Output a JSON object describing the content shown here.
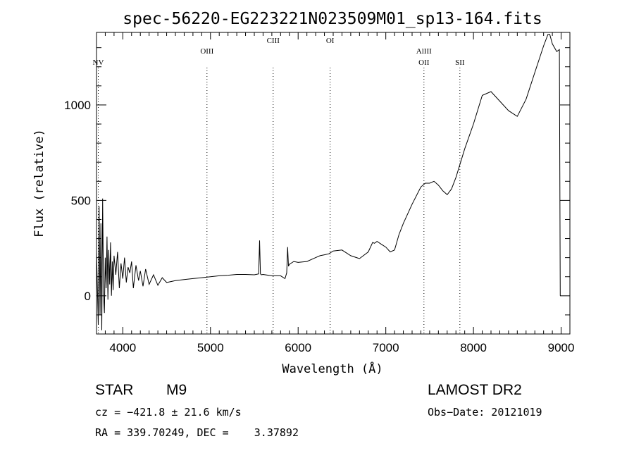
{
  "chart_data": {
    "type": "line",
    "title": "spec-56220-EG223221N023509M01_sp13-164.fits",
    "xlabel": "Wavelength (Å)",
    "ylabel": "Flux (relative)",
    "xlim": [
      3700,
      9100
    ],
    "ylim": [
      -200,
      1380
    ],
    "x_ticks": [
      4000,
      5000,
      6000,
      7000,
      8000,
      9000
    ],
    "y_ticks": [
      0,
      500,
      1000
    ],
    "x_tick_labels": [
      "4000",
      "5000",
      "6000",
      "7000",
      "8000",
      "9000"
    ],
    "y_tick_labels": [
      "0",
      "500",
      "1000"
    ],
    "grid": false,
    "lines": [
      {
        "name": "NV",
        "x": 3720,
        "label_y": 1210
      },
      {
        "name": "OIII",
        "x": 4960,
        "label_y": 1270
      },
      {
        "name": "CIII",
        "x": 5715,
        "label_y": 1325
      },
      {
        "name": "OI",
        "x": 6365,
        "label_y": 1325
      },
      {
        "name": "AlIII",
        "x": 7435,
        "label_y": 1270
      },
      {
        "name": "OII",
        "x": 7435,
        "label_y": 1210
      },
      {
        "name": "SII",
        "x": 7845,
        "label_y": 1210
      }
    ],
    "series": [
      {
        "x": [
          3700,
          3720,
          3730,
          3740,
          3750,
          3760,
          3770,
          3780,
          3790,
          3800,
          3810,
          3820,
          3830,
          3840,
          3850,
          3860,
          3870,
          3880,
          3890,
          3900,
          3920,
          3940,
          3960,
          3980,
          4000,
          4020,
          4040,
          4060,
          4080,
          4100,
          4120,
          4150,
          4180,
          4200,
          4230,
          4260,
          4300,
          4350,
          4400,
          4450,
          4500,
          4600,
          4700,
          4800,
          4900,
          5000,
          5100,
          5200,
          5300,
          5400,
          5500,
          5550,
          5560,
          5570,
          5580,
          5600,
          5700,
          5800,
          5850,
          5870,
          5880,
          5890,
          5900,
          5950,
          6000,
          6100,
          6200,
          6250,
          6300,
          6350,
          6400,
          6500,
          6600,
          6700,
          6800,
          6850,
          6870,
          6900,
          6950,
          7000,
          7050,
          7100,
          7150,
          7200,
          7300,
          7400,
          7450,
          7500,
          7550,
          7600,
          7650,
          7700,
          7750,
          7800,
          7900,
          8000,
          8100,
          8200,
          8300,
          8400,
          8500,
          8600,
          8700,
          8800,
          8850,
          8870,
          8900,
          8950,
          8980,
          8990
        ],
        "y": [
          230,
          -150,
          470,
          -100,
          380,
          -180,
          510,
          0,
          -90,
          200,
          40,
          310,
          -20,
          240,
          60,
          280,
          0,
          180,
          30,
          210,
          110,
          230,
          40,
          170,
          90,
          200,
          70,
          150,
          120,
          180,
          40,
          160,
          80,
          130,
          50,
          140,
          60,
          110,
          55,
          95,
          70,
          80,
          85,
          90,
          95,
          100,
          105,
          108,
          112,
          112,
          110,
          115,
          290,
          115,
          110,
          112,
          105,
          105,
          90,
          120,
          255,
          155,
          165,
          180,
          175,
          180,
          200,
          210,
          215,
          220,
          235,
          240,
          210,
          195,
          230,
          280,
          275,
          285,
          270,
          255,
          230,
          240,
          320,
          380,
          480,
          570,
          590,
          590,
          600,
          580,
          550,
          530,
          560,
          620,
          770,
          900,
          1050,
          1070,
          1020,
          970,
          940,
          1030,
          1170,
          1310,
          1370,
          1370,
          1320,
          1280,
          1290,
          0
        ]
      }
    ]
  },
  "info": {
    "object_class": "STAR",
    "subclass": "M9",
    "survey": "LAMOST DR2",
    "redshift": "cz = −421.8 ± 21.6 km/s",
    "obs_date": "Obs−Date: 20121019",
    "coords": "RA = 339.70249, DEC =    3.37892"
  }
}
